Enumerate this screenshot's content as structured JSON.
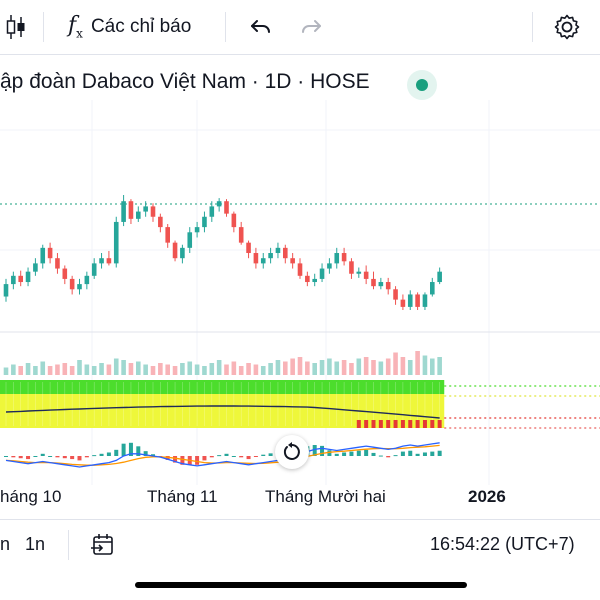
{
  "toolbar": {
    "candles_icon": "candlestick-icon",
    "indicators_label": "Các chỉ báo",
    "undo_icon": "undo-icon",
    "redo_icon": "redo-icon",
    "settings_icon": "gear-icon"
  },
  "header": {
    "title": "ập đoàn Dabaco Việt Nam · 1D · HOSE",
    "status_color": "#1a9f7e"
  },
  "chart_data": {
    "type": "candlestick",
    "x_labels": [
      "háng 10",
      "Tháng 11",
      "Tháng Mười hai",
      "2026"
    ],
    "colors": {
      "up": "#26a69a",
      "down": "#ef5350",
      "vol_up": "#9fd8d0",
      "vol_down": "#f8b3b7"
    },
    "candles": [
      [
        208,
        220,
        203,
        225
      ],
      [
        220,
        228,
        215,
        232
      ],
      [
        228,
        222,
        218,
        233
      ],
      [
        222,
        232,
        218,
        236
      ],
      [
        232,
        240,
        228,
        245
      ],
      [
        240,
        255,
        235,
        258
      ],
      [
        255,
        245,
        240,
        260
      ],
      [
        245,
        235,
        230,
        250
      ],
      [
        235,
        225,
        220,
        238
      ],
      [
        225,
        215,
        210,
        228
      ],
      [
        215,
        220,
        210,
        225
      ],
      [
        220,
        228,
        215,
        232
      ],
      [
        228,
        240,
        225,
        245
      ],
      [
        240,
        245,
        235,
        250
      ],
      [
        245,
        240,
        238,
        252
      ],
      [
        240,
        280,
        236,
        285
      ],
      [
        280,
        300,
        276,
        306
      ],
      [
        300,
        283,
        278,
        302
      ],
      [
        283,
        290,
        280,
        295
      ],
      [
        290,
        295,
        285,
        300
      ],
      [
        295,
        285,
        280,
        298
      ],
      [
        285,
        275,
        270,
        288
      ],
      [
        275,
        260,
        255,
        278
      ],
      [
        260,
        245,
        242,
        262
      ],
      [
        245,
        255,
        240,
        258
      ],
      [
        255,
        270,
        250,
        275
      ],
      [
        270,
        275,
        265,
        280
      ],
      [
        275,
        285,
        270,
        290
      ],
      [
        285,
        295,
        280,
        300
      ],
      [
        295,
        300,
        290,
        303
      ],
      [
        300,
        288,
        285,
        302
      ],
      [
        288,
        275,
        270,
        290
      ],
      [
        275,
        260,
        258,
        280
      ],
      [
        260,
        250,
        245,
        262
      ],
      [
        250,
        240,
        235,
        255
      ],
      [
        240,
        245,
        235,
        250
      ],
      [
        245,
        250,
        240,
        255
      ],
      [
        250,
        255,
        245,
        260
      ],
      [
        255,
        245,
        240,
        258
      ],
      [
        245,
        240,
        235,
        250
      ],
      [
        240,
        228,
        225,
        245
      ],
      [
        228,
        222,
        218,
        232
      ],
      [
        222,
        225,
        218,
        230
      ],
      [
        225,
        235,
        222,
        240
      ],
      [
        235,
        240,
        230,
        245
      ],
      [
        240,
        250,
        235,
        255
      ],
      [
        250,
        242,
        238,
        255
      ],
      [
        242,
        230,
        225,
        245
      ],
      [
        230,
        232,
        226,
        236
      ],
      [
        232,
        225,
        220,
        238
      ],
      [
        225,
        218,
        215,
        232
      ],
      [
        218,
        222,
        215,
        226
      ],
      [
        222,
        215,
        210,
        226
      ],
      [
        215,
        205,
        200,
        218
      ],
      [
        205,
        198,
        195,
        210
      ],
      [
        198,
        210,
        195,
        214
      ],
      [
        210,
        198,
        195,
        212
      ],
      [
        198,
        210,
        195,
        212
      ],
      [
        210,
        222,
        208,
        226
      ],
      [
        222,
        232,
        220,
        236
      ]
    ],
    "volume": [
      0.25,
      0.35,
      0.3,
      0.4,
      0.3,
      0.45,
      0.3,
      0.35,
      0.4,
      0.3,
      0.5,
      0.35,
      0.3,
      0.4,
      0.35,
      0.55,
      0.5,
      0.4,
      0.45,
      0.35,
      0.3,
      0.4,
      0.35,
      0.3,
      0.4,
      0.45,
      0.35,
      0.3,
      0.4,
      0.5,
      0.35,
      0.45,
      0.3,
      0.4,
      0.35,
      0.3,
      0.4,
      0.5,
      0.45,
      0.55,
      0.6,
      0.45,
      0.4,
      0.5,
      0.55,
      0.45,
      0.5,
      0.4,
      0.55,
      0.6,
      0.5,
      0.45,
      0.55,
      0.75,
      0.6,
      0.5,
      0.8,
      0.65,
      0.55,
      0.6
    ],
    "macd_line": [
      -0.2,
      -0.25,
      -0.3,
      -0.35,
      -0.3,
      -0.25,
      -0.3,
      -0.35,
      -0.4,
      -0.45,
      -0.5,
      -0.45,
      -0.4,
      -0.35,
      -0.3,
      -0.2,
      0.0,
      0.1,
      0.1,
      0.05,
      0.0,
      -0.05,
      -0.15,
      -0.25,
      -0.35,
      -0.4,
      -0.45,
      -0.4,
      -0.35,
      -0.3,
      -0.25,
      -0.3,
      -0.35,
      -0.4,
      -0.35,
      -0.3,
      -0.25,
      -0.2,
      -0.1,
      0.0,
      0.1,
      0.2,
      0.3,
      0.35,
      0.3,
      0.25,
      0.3,
      0.35,
      0.4,
      0.45,
      0.4,
      0.35,
      0.3,
      0.35,
      0.45,
      0.5,
      0.45,
      0.5,
      0.55,
      0.6
    ],
    "signal_line": [
      -0.2,
      -0.22,
      -0.25,
      -0.28,
      -0.3,
      -0.3,
      -0.3,
      -0.32,
      -0.35,
      -0.38,
      -0.4,
      -0.42,
      -0.42,
      -0.4,
      -0.38,
      -0.34,
      -0.28,
      -0.2,
      -0.12,
      -0.06,
      -0.04,
      -0.04,
      -0.06,
      -0.1,
      -0.15,
      -0.2,
      -0.25,
      -0.3,
      -0.32,
      -0.32,
      -0.3,
      -0.3,
      -0.32,
      -0.33,
      -0.34,
      -0.33,
      -0.31,
      -0.28,
      -0.24,
      -0.18,
      -0.1,
      -0.02,
      0.05,
      0.12,
      0.17,
      0.2,
      0.22,
      0.25,
      0.28,
      0.31,
      0.33,
      0.34,
      0.33,
      0.33,
      0.35,
      0.38,
      0.4,
      0.42,
      0.45,
      0.48
    ]
  },
  "bottom_bar": {
    "range_1": "n",
    "range_2": "1n",
    "goto_icon": "calendar-arrow-icon",
    "time": "16:54:22 (UTC+7)"
  }
}
